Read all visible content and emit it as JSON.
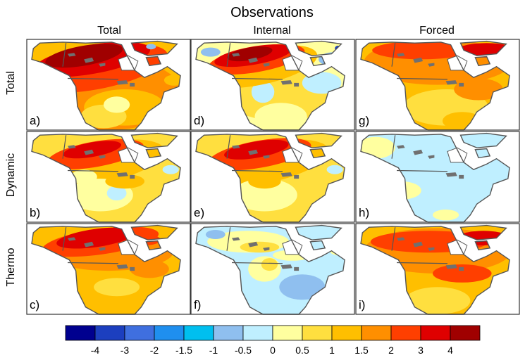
{
  "title": "Observations",
  "columns": [
    "Total",
    "Internal",
    "Forced"
  ],
  "rows": [
    "Total",
    "Dynamic",
    "Thermo"
  ],
  "panels": [
    {
      "label": "a)",
      "row": 0,
      "col": 0,
      "pattern": "total_total"
    },
    {
      "label": "d)",
      "row": 0,
      "col": 1,
      "pattern": "total_internal"
    },
    {
      "label": "g)",
      "row": 0,
      "col": 2,
      "pattern": "total_forced"
    },
    {
      "label": "b)",
      "row": 1,
      "col": 0,
      "pattern": "dynamic_total"
    },
    {
      "label": "e)",
      "row": 1,
      "col": 1,
      "pattern": "dynamic_internal"
    },
    {
      "label": "h)",
      "row": 1,
      "col": 2,
      "pattern": "dynamic_forced"
    },
    {
      "label": "c)",
      "row": 2,
      "col": 0,
      "pattern": "thermo_total"
    },
    {
      "label": "f)",
      "row": 2,
      "col": 1,
      "pattern": "thermo_internal"
    },
    {
      "label": "i)",
      "row": 2,
      "col": 2,
      "pattern": "thermo_forced"
    }
  ],
  "colorbar": {
    "colors": [
      "#00008f",
      "#1c3fbf",
      "#3f6fdf",
      "#1f8fef",
      "#00bfef",
      "#8fbfef",
      "#bfefff",
      "#ffff9f",
      "#ffdf3f",
      "#ffbf00",
      "#ff8f00",
      "#ff3f00",
      "#df0000",
      "#a00000"
    ],
    "tick_labels": [
      "-4",
      "-3",
      "-2",
      "-1.5",
      "-1",
      "-0.5",
      "0",
      "0.5",
      "1",
      "1.5",
      "2",
      "3",
      "4"
    ]
  },
  "colors": {
    "land": "#ffffff",
    "coast": "#555555",
    "frame": "#333333"
  }
}
